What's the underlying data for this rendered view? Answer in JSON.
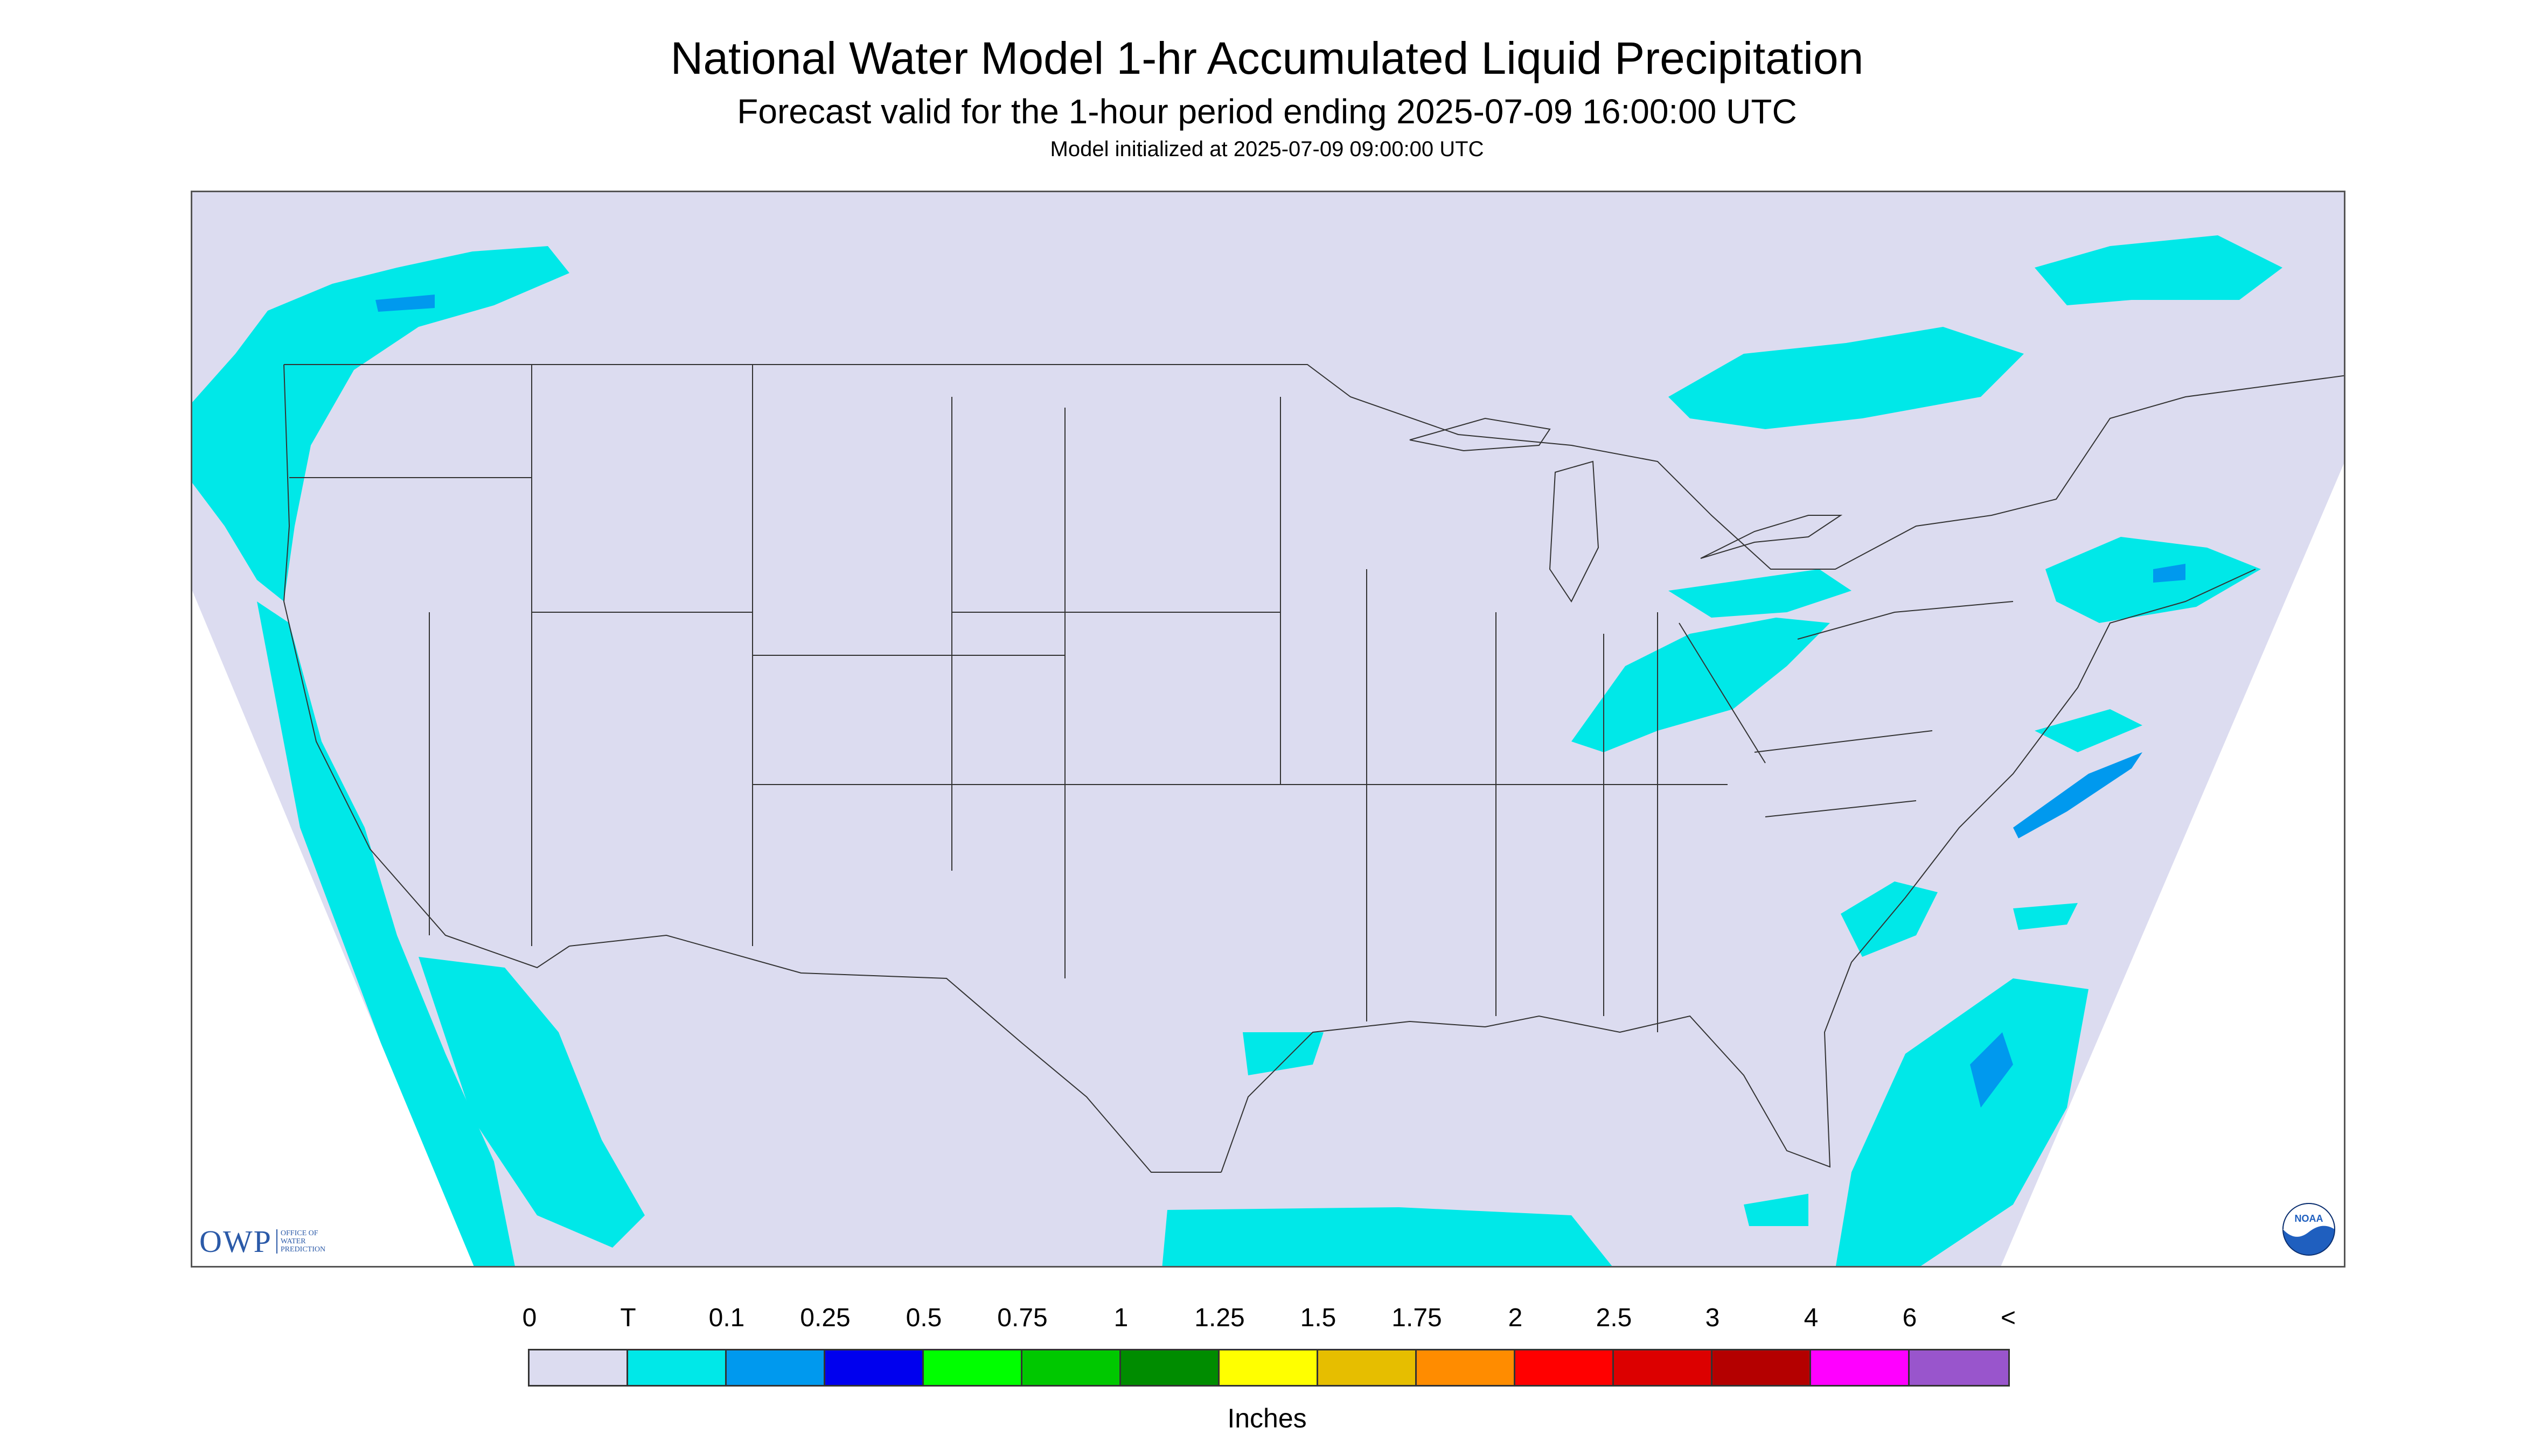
{
  "title": "National Water Model 1-hr Accumulated Liquid Precipitation",
  "subtitle": "Forecast valid for the 1-hour period ending 2025-07-09 16:00:00 UTC",
  "init_text": "Model initialized at 2025-07-09 09:00:00 UTC",
  "logos": {
    "owp_word": "OWP",
    "owp_sub": [
      "Office of",
      "Water",
      "Prediction"
    ],
    "noaa_text": "NOAA"
  },
  "legend": {
    "labels": [
      "0",
      "T",
      "0.1",
      "0.25",
      "0.5",
      "0.75",
      "1",
      "1.25",
      "1.5",
      "1.75",
      "2",
      "2.5",
      "3",
      "4",
      "6",
      "<"
    ],
    "colors": [
      "#dcdcf0",
      "#00e8e8",
      "#0099ee",
      "#0000ee",
      "#00ff00",
      "#00c800",
      "#008c00",
      "#ffff00",
      "#e6be00",
      "#ff8c00",
      "#ff0000",
      "#dc0000",
      "#b40000",
      "#ff00ff",
      "#9955cc"
    ],
    "units": "Inches"
  },
  "map": {
    "domain_color": "#dcdcf0",
    "trace_color": "#00e8e8",
    "light_color": "#0099ee",
    "boundary_color": "#333333"
  }
}
